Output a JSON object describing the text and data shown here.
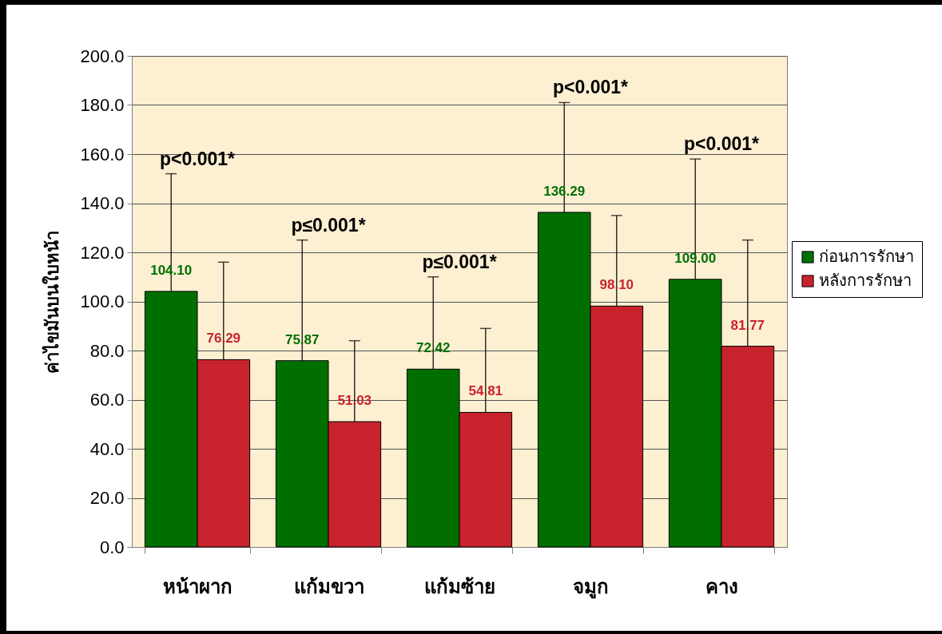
{
  "chart_data": {
    "type": "bar",
    "ylabel": "ค่าไขมันบนใบหน้า",
    "categories": [
      "หน้าผาก",
      "แก้มขวา",
      "แก้มซ้าย",
      "จมูก",
      "คาง"
    ],
    "series": [
      {
        "name": "ก่อนการรักษา",
        "color": "#006f00",
        "values": [
          104.1,
          75.87,
          72.42,
          136.29,
          109.0
        ],
        "value_labels": [
          "104.10",
          "75.87",
          "72.42",
          "136.29",
          "109.00"
        ],
        "errors": [
          [
            104.1,
            152
          ],
          [
            75.87,
            125
          ],
          [
            72.42,
            110
          ],
          [
            136.29,
            181
          ],
          [
            109.0,
            158
          ]
        ]
      },
      {
        "name": "หลังการรักษา",
        "color": "#c8232c",
        "values": [
          76.29,
          51.03,
          54.81,
          98.1,
          81.77
        ],
        "value_labels": [
          "76.29",
          "51.03",
          "54.81",
          "98.10",
          "81.77"
        ],
        "errors": [
          [
            76.29,
            116
          ],
          [
            51.03,
            84
          ],
          [
            54.81,
            89
          ],
          [
            98.1,
            135
          ],
          [
            81.77,
            125
          ]
        ]
      }
    ],
    "ylim": [
      0,
      200
    ],
    "yticks": [
      {
        "value": 0,
        "label": "0.0"
      },
      {
        "value": 20,
        "label": "20.0"
      },
      {
        "value": 40,
        "label": "40.0"
      },
      {
        "value": 60,
        "label": "60.0"
      },
      {
        "value": 80,
        "label": "80.0"
      },
      {
        "value": 100,
        "label": "100.0"
      },
      {
        "value": 120,
        "label": "120.0"
      },
      {
        "value": 140,
        "label": "140.0"
      },
      {
        "value": 160,
        "label": "160.0"
      },
      {
        "value": 180,
        "label": "180.0"
      },
      {
        "value": 200,
        "label": "200.0"
      }
    ],
    "grid": "y",
    "legend": "right",
    "annotations": [
      "p<0.001*",
      "p≤0.001*",
      "p≤0.001*",
      "p<0.001*",
      "p<0.001*"
    ]
  }
}
